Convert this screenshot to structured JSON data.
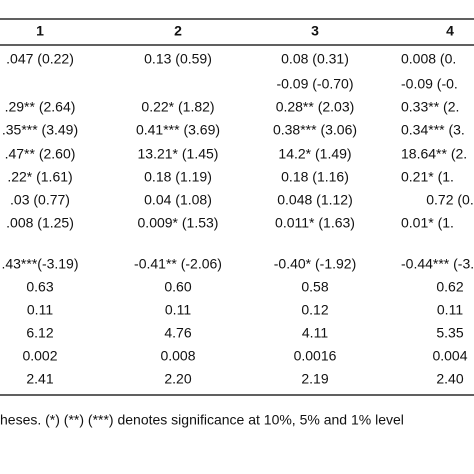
{
  "table": {
    "header": [
      "1",
      "2",
      "3",
      "4"
    ],
    "rows": [
      [
        ".047 (0.22)",
        "0.13 (0.59)",
        "0.08 (0.31)",
        "0.008 (0."
      ],
      [
        null,
        null,
        "-0.09 (-0.70)",
        "-0.09 (-0."
      ],
      [
        ".29** (2.64)",
        "0.22* (1.82)",
        "0.28** (2.03)",
        "0.33** (2."
      ],
      [
        ".35*** (3.49)",
        "0.41*** (3.69)",
        "0.38*** (3.06)",
        "0.34*** (3."
      ],
      [
        ".47** (2.60)",
        "13.21* (1.45)",
        "14.2* (1.49)",
        "18.64** (2."
      ],
      [
        ".22* (1.61)",
        "0.18 (1.19)",
        "0.18 (1.16)",
        "0.21* (1."
      ],
      [
        ".03 (0.77)",
        "0.04 (1.08)",
        "0.048 (1.12)",
        "0.72 (0."
      ],
      [
        ".008 (1.25)",
        "0.009* (1.53)",
        "0.011* (1.63)",
        "0.01* (1."
      ],
      [
        null,
        null,
        null,
        null
      ],
      [
        ".43***(-3.19)",
        "-0.41** (-2.06)",
        "-0.40* (-1.92)",
        "-0.44*** (-3."
      ],
      [
        "0.63",
        "0.60",
        "0.58",
        "0.62"
      ],
      [
        "0.11",
        "0.11",
        "0.12",
        "0.11"
      ],
      [
        "6.12",
        "4.76",
        "4.11",
        "5.35"
      ],
      [
        "0.002",
        "0.008",
        "0.0016",
        "0.004"
      ],
      [
        "2.41",
        "2.20",
        "2.19",
        "2.40"
      ]
    ],
    "footnote": "heses. (*) (**) (***) denotes significance at 10%, 5% and 1% level"
  }
}
